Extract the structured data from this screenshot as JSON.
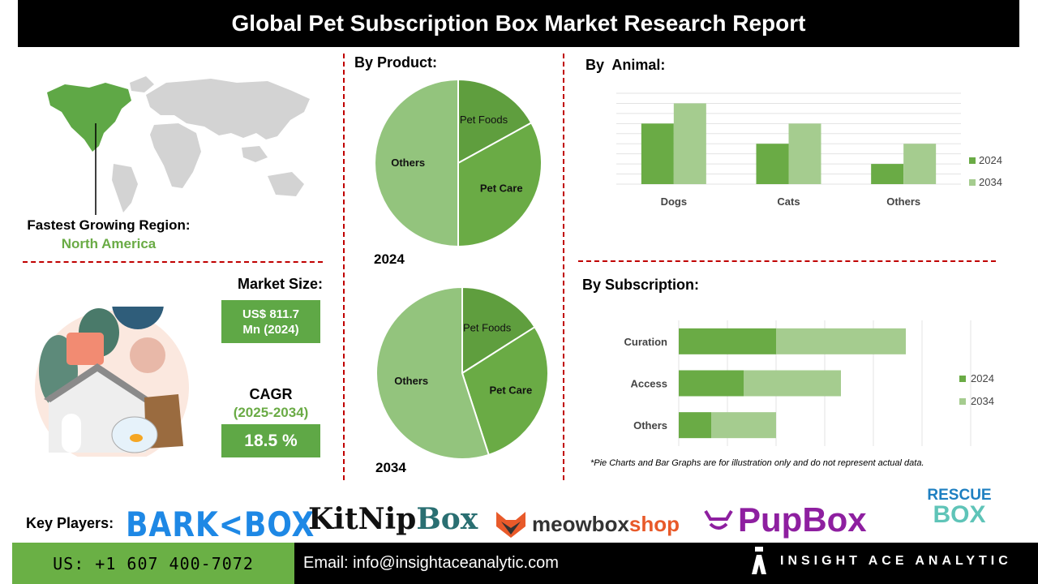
{
  "title": "Global Pet Subscription Box Market Research Report",
  "region": {
    "label": "Fastest Growing Region:",
    "value": "North America"
  },
  "market_size": {
    "label": "Market Size:",
    "value_line1": "US$ 811.7",
    "value_line2": "Mn (2024)"
  },
  "cagr": {
    "label": "CAGR",
    "period": "(2025-2034)",
    "value": "18.5 %"
  },
  "by_product": {
    "heading": "By Product:",
    "year_2024": "2024",
    "year_2034": "2034"
  },
  "by_animal": {
    "heading": "By  Animal:"
  },
  "by_subscription": {
    "heading": "By Subscription:"
  },
  "disclaimer": "*Pie Charts and Bar Graphs are for illustration only and do not represent actual data.",
  "key_players": {
    "label": "Key Players:",
    "barkbox_left": "BARK",
    "barkbox_right": "BOX",
    "kitnip_left": "KitNip",
    "kitnip_right": "Box",
    "meow": "meowbox",
    "meow_shop": "shop",
    "pupbox": "PupBox",
    "rescue_top": "RESCUE",
    "rescue_bottom": "BOX"
  },
  "footer": {
    "phone": "US: +1 607 400-7072",
    "email": "Email: info@insightaceanalytic.com",
    "brand": "INSIGHT ACE ANALYTIC"
  },
  "colors": {
    "dark_green": "#5f9e3e",
    "mid_green": "#6aab45",
    "light_green": "#a5cc8f",
    "pie_light": "#93c47d",
    "accent_red": "#c00000"
  },
  "chart_data": [
    {
      "type": "pie",
      "year": "2024",
      "labels": [
        "Pet Foods",
        "Pet Care",
        "Others"
      ],
      "values": [
        17,
        33,
        50
      ]
    },
    {
      "type": "pie",
      "year": "2034",
      "labels": [
        "Pet Foods",
        "Pet Care",
        "Others"
      ],
      "values": [
        16,
        29,
        55
      ]
    },
    {
      "type": "bar",
      "categories": [
        "Dogs",
        "Cats",
        "Others"
      ],
      "series": [
        {
          "name": "2024",
          "values": [
            3,
            2,
            1
          ]
        },
        {
          "name": "2034",
          "values": [
            4,
            3,
            2
          ]
        }
      ],
      "ylim": [
        0,
        4.5
      ],
      "grid": true,
      "legend": "right"
    },
    {
      "type": "bar",
      "orientation": "horizontal-stacked",
      "categories": [
        "Curation",
        "Access",
        "Others"
      ],
      "series": [
        {
          "name": "2024",
          "values": [
            3,
            2,
            1
          ]
        },
        {
          "name": "2034",
          "values": [
            4,
            3,
            2
          ]
        }
      ],
      "xlim": [
        0,
        9
      ],
      "grid": true,
      "legend": "right"
    }
  ]
}
